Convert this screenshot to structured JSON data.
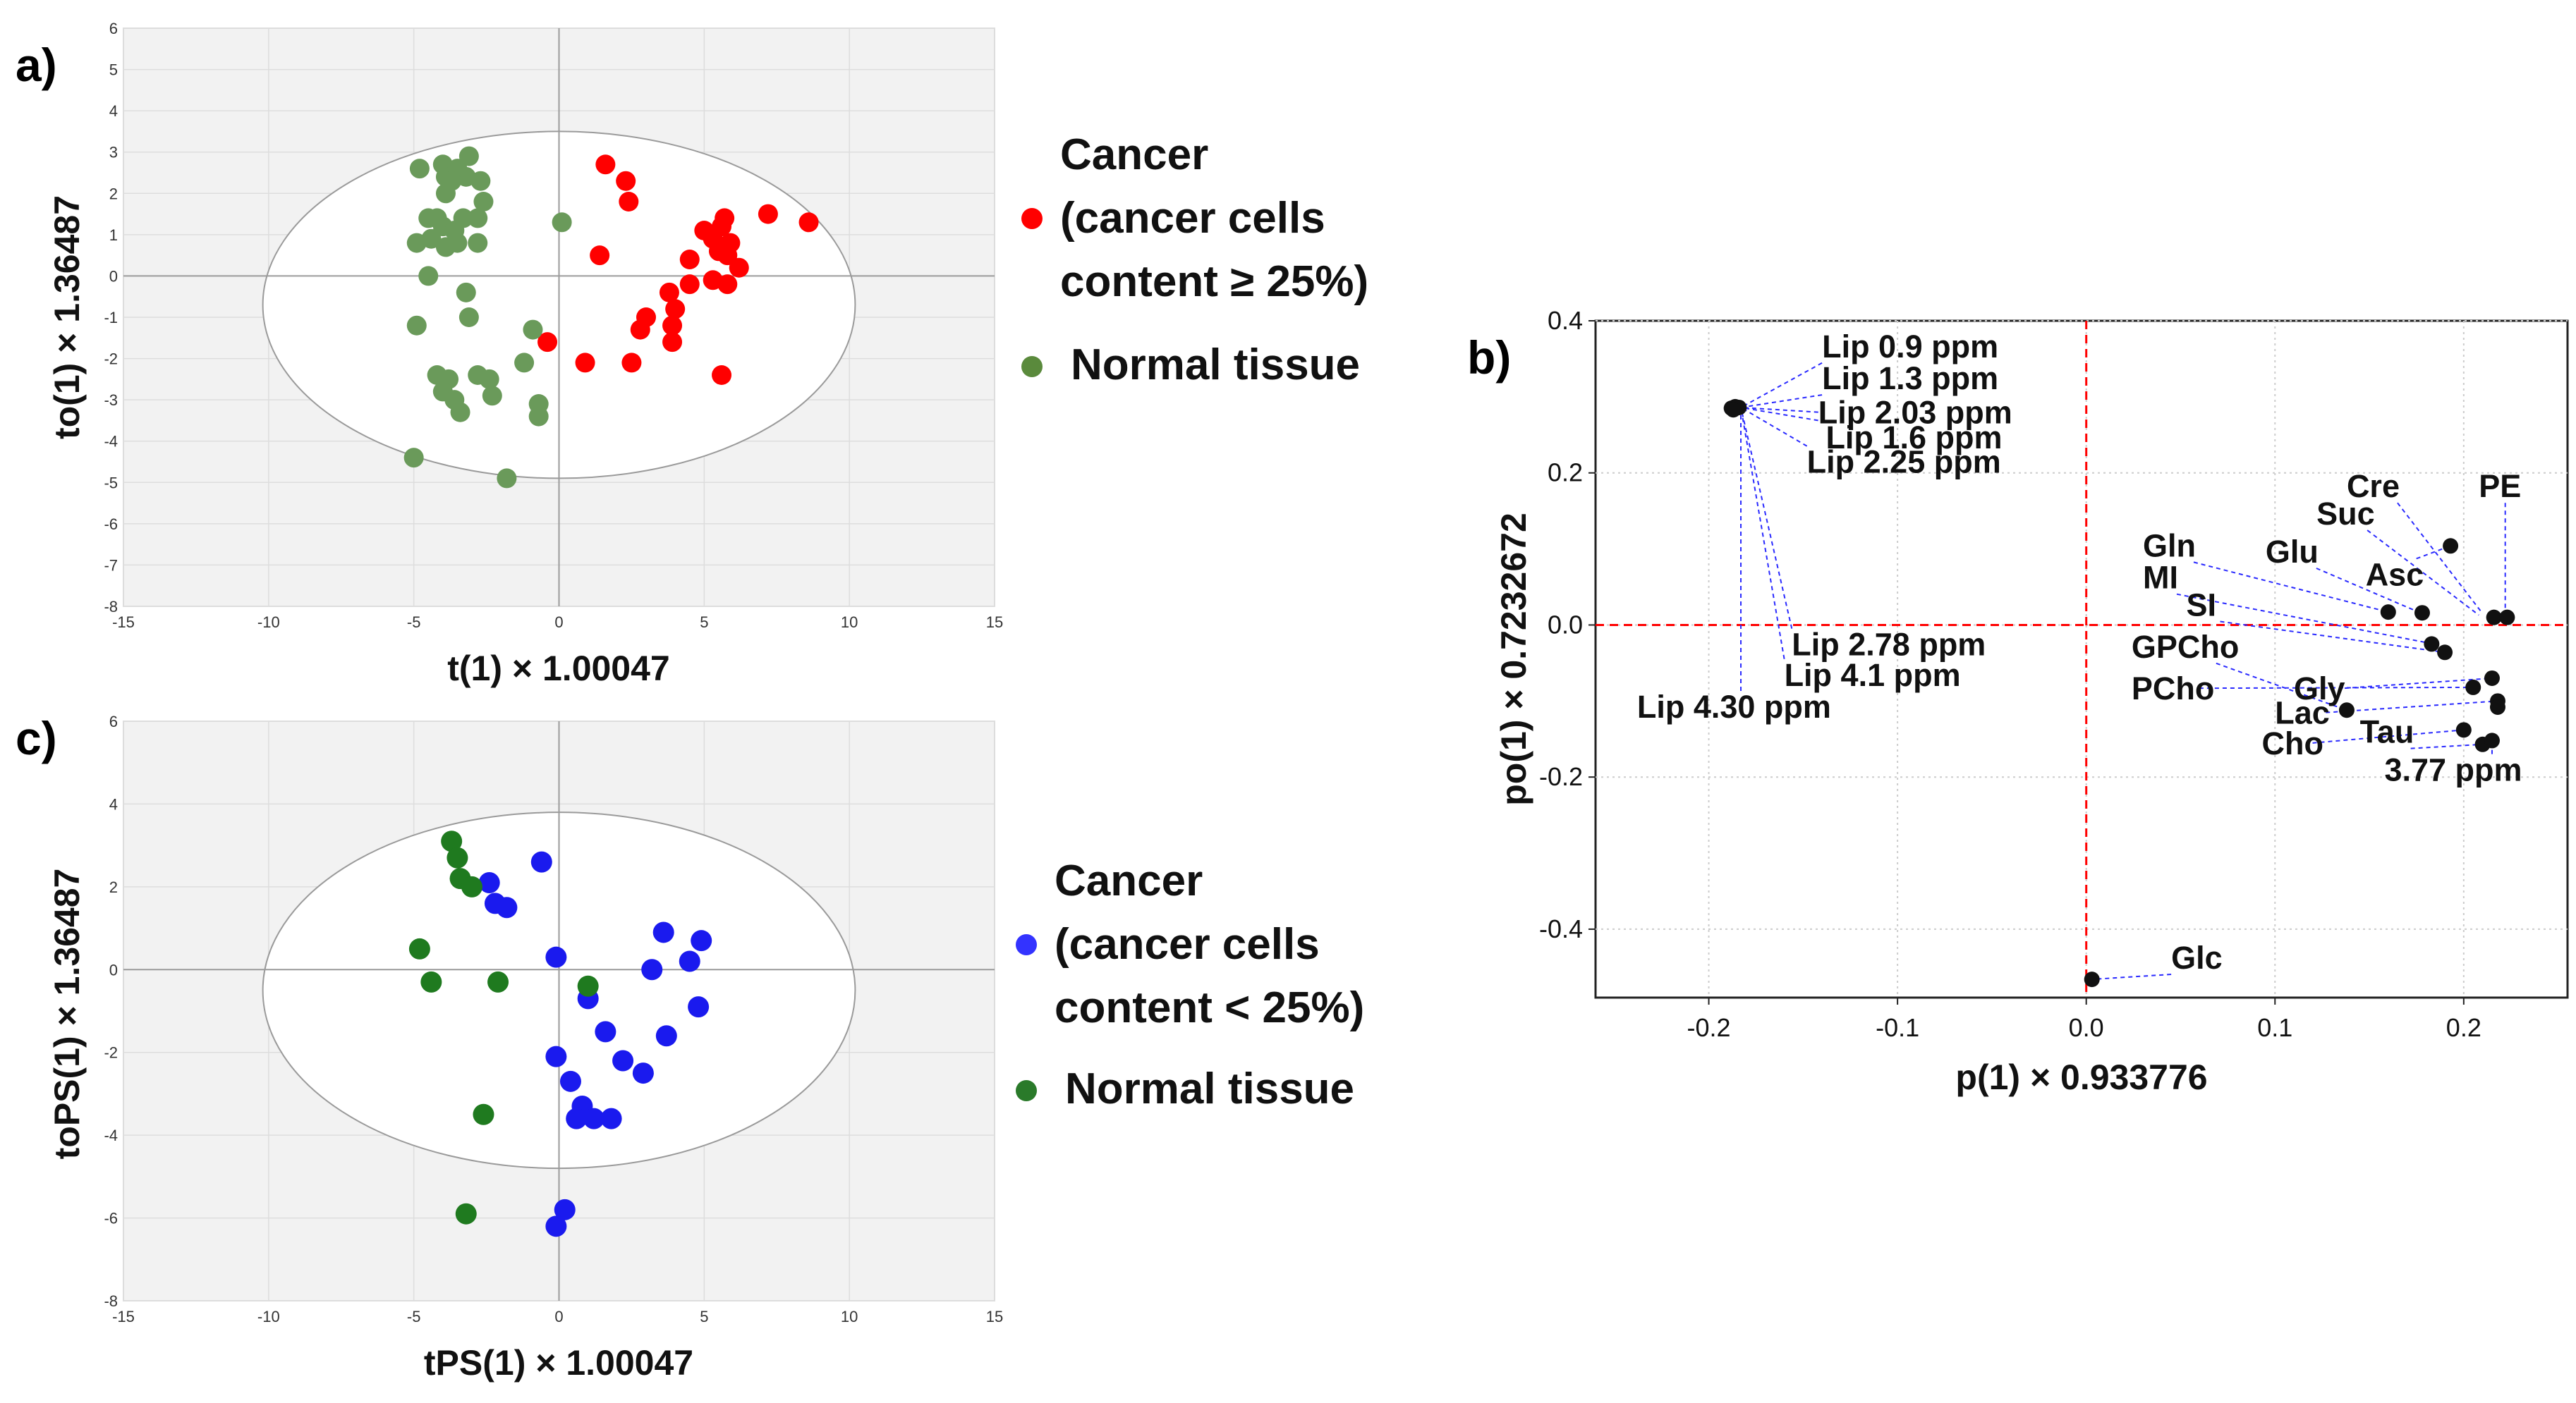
{
  "chart_data": [
    {
      "panel_label": "a)",
      "type": "scatter",
      "xlabel": "t(1) × 1.00047",
      "ylabel": "to(1) × 1.36487",
      "xlim": [
        -15,
        15
      ],
      "ylim": [
        -8,
        6
      ],
      "xticks": [
        -15,
        -10,
        -5,
        0,
        5,
        10,
        15
      ],
      "yticks": [
        -8,
        -7,
        -6,
        -5,
        -4,
        -3,
        -2,
        -1,
        0,
        1,
        2,
        3,
        4,
        5,
        6
      ],
      "ellipse": {
        "cx": 0,
        "cy": -0.7,
        "rx": 10.2,
        "ry": 4.2
      },
      "legend": [
        {
          "lines": [
            "Cancer",
            "(cancer cells",
            "content ≥ 25%)"
          ],
          "color": "#ff0000"
        },
        {
          "lines": [
            "Normal tissue"
          ],
          "color": "#5a8a3c"
        }
      ],
      "series": [
        {
          "name": "Cancer (cancer cells content ≥ 25%)",
          "color": "#ff0000",
          "points": [
            [
              1.6,
              2.7
            ],
            [
              2.3,
              2.3
            ],
            [
              2.4,
              1.8
            ],
            [
              1.4,
              0.5
            ],
            [
              -0.4,
              -1.6
            ],
            [
              0.9,
              -2.1
            ],
            [
              2.5,
              -2.1
            ],
            [
              2.8,
              -1.3
            ],
            [
              3.0,
              -1.0
            ],
            [
              3.8,
              -0.4
            ],
            [
              4.0,
              -0.8
            ],
            [
              3.9,
              -1.2
            ],
            [
              3.9,
              -1.6
            ],
            [
              4.5,
              0.4
            ],
            [
              4.5,
              -0.2
            ],
            [
              5.0,
              1.1
            ],
            [
              5.3,
              0.9
            ],
            [
              5.6,
              1.2
            ],
            [
              5.7,
              1.4
            ],
            [
              5.5,
              0.6
            ],
            [
              5.8,
              0.5
            ],
            [
              5.9,
              0.8
            ],
            [
              6.2,
              0.2
            ],
            [
              5.3,
              -0.1
            ],
            [
              5.8,
              -0.2
            ],
            [
              5.6,
              -2.4
            ],
            [
              7.2,
              1.5
            ],
            [
              8.6,
              1.3
            ]
          ]
        },
        {
          "name": "Normal tissue",
          "color": "#6a9a5a",
          "points": [
            [
              -4.8,
              2.6
            ],
            [
              -4.0,
              2.7
            ],
            [
              -3.9,
              2.4
            ],
            [
              -3.5,
              2.6
            ],
            [
              -3.1,
              2.9
            ],
            [
              -3.2,
              2.4
            ],
            [
              -2.7,
              2.3
            ],
            [
              -3.7,
              2.3
            ],
            [
              -3.9,
              2.0
            ],
            [
              -2.6,
              1.8
            ],
            [
              -4.5,
              1.4
            ],
            [
              -4.2,
              1.4
            ],
            [
              -4.0,
              1.2
            ],
            [
              -3.6,
              1.1
            ],
            [
              -3.3,
              1.4
            ],
            [
              -2.8,
              1.4
            ],
            [
              -4.9,
              0.8
            ],
            [
              -4.4,
              0.9
            ],
            [
              -3.9,
              0.7
            ],
            [
              -3.5,
              0.8
            ],
            [
              -2.8,
              0.8
            ],
            [
              -4.5,
              0.0
            ],
            [
              -3.2,
              -0.4
            ],
            [
              -3.1,
              -1.0
            ],
            [
              -4.9,
              -1.2
            ],
            [
              -0.9,
              -1.3
            ],
            [
              0.1,
              1.3
            ],
            [
              -1.2,
              -2.1
            ],
            [
              -4.2,
              -2.4
            ],
            [
              -3.8,
              -2.5
            ],
            [
              -2.8,
              -2.4
            ],
            [
              -4.0,
              -2.8
            ],
            [
              -3.6,
              -3.0
            ],
            [
              -3.4,
              -3.3
            ],
            [
              -2.4,
              -2.5
            ],
            [
              -2.3,
              -2.9
            ],
            [
              -0.7,
              -3.1
            ],
            [
              -0.7,
              -3.4
            ],
            [
              -5.0,
              -4.4
            ],
            [
              -1.8,
              -4.9
            ]
          ]
        }
      ]
    },
    {
      "panel_label": "b)",
      "type": "scatter",
      "xlabel": "p(1) × 0.933776",
      "ylabel": "po(1) × 0.7232672",
      "xlim": [
        -0.26,
        0.255
      ],
      "ylim": [
        -0.49,
        0.4
      ],
      "xticks": [
        -0.2,
        -0.1,
        0.0,
        0.1,
        0.2
      ],
      "xtick_labels": [
        "-0.2",
        "-0.1",
        "0.0",
        "0.1",
        "0.2"
      ],
      "yticks": [
        -0.4,
        -0.2,
        0.0,
        0.2,
        0.4
      ],
      "ytick_labels": [
        "-0.4",
        "-0.2",
        "0.0",
        "0.2",
        "0.4"
      ],
      "zero_lines_color": "#ff0000",
      "points": [
        [
          -0.188,
          0.285
        ],
        [
          -0.186,
          0.287
        ],
        [
          -0.184,
          0.286
        ],
        [
          -0.187,
          0.283
        ],
        [
          0.003,
          -0.466
        ],
        [
          0.193,
          0.104
        ],
        [
          0.216,
          0.01
        ],
        [
          0.223,
          0.01
        ],
        [
          0.16,
          0.017
        ],
        [
          0.178,
          0.016
        ],
        [
          0.183,
          -0.025
        ],
        [
          0.19,
          -0.036
        ],
        [
          0.138,
          -0.112
        ],
        [
          0.205,
          -0.082
        ],
        [
          0.215,
          -0.07
        ],
        [
          0.218,
          -0.1
        ],
        [
          0.218,
          -0.108
        ],
        [
          0.2,
          -0.138
        ],
        [
          0.21,
          -0.157
        ],
        [
          0.215,
          -0.152
        ]
      ],
      "annotations": [
        {
          "text": "Lip 0.9 ppm",
          "label_at": [
            -0.14,
            0.352
          ],
          "points_to": [
            -0.183,
            0.286
          ]
        },
        {
          "text": "Lip 1.3 ppm",
          "label_at": [
            -0.14,
            0.31
          ],
          "points_to": [
            -0.183,
            0.286
          ]
        },
        {
          "text": "Lip 2.03 ppm",
          "label_at": [
            -0.142,
            0.265
          ],
          "points_to": [
            -0.183,
            0.286
          ]
        },
        {
          "text": "Lip 1.6 ppm",
          "label_at": [
            -0.138,
            0.232
          ],
          "points_to": [
            -0.183,
            0.286
          ]
        },
        {
          "text": "Lip 2.25 ppm",
          "label_at": [
            -0.148,
            0.2
          ],
          "points_to": [
            -0.183,
            0.286
          ]
        },
        {
          "text": "Lip 2.78 ppm",
          "label_at": [
            -0.156,
            -0.04
          ],
          "points_to": [
            -0.183,
            0.286
          ]
        },
        {
          "text": "Lip 4.1 ppm",
          "label_at": [
            -0.16,
            -0.08
          ],
          "points_to": [
            -0.183,
            0.286
          ]
        },
        {
          "text": "Lip 4.30 ppm",
          "label_at": [
            -0.238,
            -0.122
          ],
          "points_to": [
            -0.183,
            0.286
          ]
        },
        {
          "text": "Glc",
          "label_at": [
            0.045,
            -0.452
          ],
          "points_to": [
            0.003,
            -0.466
          ]
        },
        {
          "text": "Cre",
          "label_at": [
            0.138,
            0.168
          ],
          "points_to": [
            0.21,
            0.015
          ]
        },
        {
          "text": "PE",
          "label_at": [
            0.208,
            0.168
          ],
          "points_to": [
            0.222,
            0.013
          ]
        },
        {
          "text": "Suc",
          "label_at": [
            0.122,
            0.132
          ],
          "points_to": [
            0.208,
            0.013
          ]
        },
        {
          "text": "Gln",
          "label_at": [
            0.03,
            0.09
          ],
          "points_to": [
            0.16,
            0.017
          ]
        },
        {
          "text": "Glu",
          "label_at": [
            0.095,
            0.082
          ],
          "points_to": [
            0.177,
            0.016
          ]
        },
        {
          "text": "Asc",
          "label_at": [
            0.148,
            0.052
          ],
          "points_to": [
            0.193,
            0.104
          ]
        },
        {
          "text": "MI",
          "label_at": [
            0.03,
            0.048
          ],
          "points_to": [
            0.182,
            -0.024
          ]
        },
        {
          "text": "SI",
          "label_at": [
            0.053,
            0.012
          ],
          "points_to": [
            0.19,
            -0.036
          ]
        },
        {
          "text": "GPCho",
          "label_at": [
            0.024,
            -0.043
          ],
          "points_to": [
            0.138,
            -0.112
          ]
        },
        {
          "text": "PCho",
          "label_at": [
            0.024,
            -0.098
          ],
          "points_to": [
            0.205,
            -0.082
          ]
        },
        {
          "text": "Gly",
          "label_at": [
            0.11,
            -0.098
          ],
          "points_to": [
            0.215,
            -0.07
          ]
        },
        {
          "text": "Lac",
          "label_at": [
            0.1,
            -0.13
          ],
          "points_to": [
            0.218,
            -0.1
          ]
        },
        {
          "text": "Cho",
          "label_at": [
            0.093,
            -0.17
          ],
          "points_to": [
            0.2,
            -0.138
          ]
        },
        {
          "text": "Tau",
          "label_at": [
            0.145,
            -0.155
          ],
          "points_to": [
            0.21,
            -0.157
          ]
        },
        {
          "text": "3.77 ppm",
          "label_at": [
            0.158,
            -0.205
          ],
          "points_to": [
            0.215,
            -0.152
          ]
        }
      ]
    },
    {
      "panel_label": "c)",
      "type": "scatter",
      "xlabel": "tPS(1) × 1.00047",
      "ylabel": "toPS(1) × 1.36487",
      "xlim": [
        -15,
        15
      ],
      "ylim": [
        -8,
        6
      ],
      "xticks": [
        -15,
        -10,
        -5,
        0,
        5,
        10,
        15
      ],
      "yticks": [
        -8,
        -6,
        -4,
        -2,
        0,
        2,
        4,
        6
      ],
      "ellipse": {
        "cx": 0,
        "cy": -0.5,
        "rx": 10.2,
        "ry": 4.3
      },
      "legend": [
        {
          "lines": [
            "Cancer",
            "(cancer cells",
            "content < 25%)"
          ],
          "color": "#3333ff"
        },
        {
          "lines": [
            "Normal tissue"
          ],
          "color": "#2a7a2a"
        }
      ],
      "series": [
        {
          "name": "Cancer (cancer cells content < 25%)",
          "color": "#1a1aee",
          "points": [
            [
              -0.6,
              2.6
            ],
            [
              -2.4,
              2.1
            ],
            [
              -2.2,
              1.6
            ],
            [
              -1.8,
              1.5
            ],
            [
              3.6,
              0.9
            ],
            [
              4.9,
              0.7
            ],
            [
              -0.1,
              0.3
            ],
            [
              3.2,
              0.0
            ],
            [
              4.5,
              0.2
            ],
            [
              1.0,
              -0.7
            ],
            [
              4.8,
              -0.9
            ],
            [
              -0.1,
              -2.1
            ],
            [
              1.6,
              -1.5
            ],
            [
              3.7,
              -1.6
            ],
            [
              2.2,
              -2.2
            ],
            [
              2.9,
              -2.5
            ],
            [
              0.4,
              -2.7
            ],
            [
              0.8,
              -3.3
            ],
            [
              1.2,
              -3.6
            ],
            [
              0.6,
              -3.6
            ],
            [
              1.8,
              -3.6
            ],
            [
              0.2,
              -5.8
            ],
            [
              -0.1,
              -6.2
            ]
          ]
        },
        {
          "name": "Normal tissue",
          "color": "#1f7a1f",
          "points": [
            [
              -3.7,
              3.1
            ],
            [
              -3.5,
              2.7
            ],
            [
              -3.4,
              2.2
            ],
            [
              -3.0,
              2.0
            ],
            [
              -4.8,
              0.5
            ],
            [
              -4.4,
              -0.3
            ],
            [
              -2.1,
              -0.3
            ],
            [
              1.0,
              -0.4
            ],
            [
              -2.6,
              -3.5
            ],
            [
              -3.2,
              -5.9
            ]
          ]
        }
      ]
    }
  ]
}
